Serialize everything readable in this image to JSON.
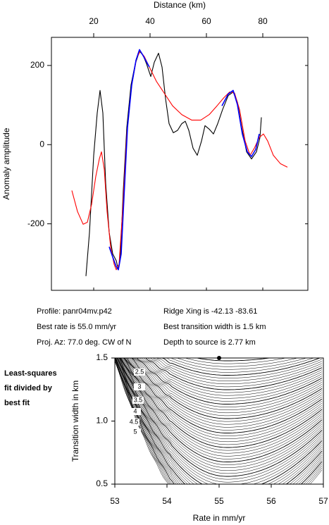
{
  "chart_data": [
    {
      "type": "line",
      "x_label": "Distance (km)",
      "y_label": "Anomaly amplitude",
      "xlim": [
        5,
        96
      ],
      "ylim": [
        -368,
        271
      ],
      "xticks": [
        20,
        40,
        60,
        80
      ],
      "yticks": [
        -200,
        0,
        200
      ],
      "series": [
        {
          "color": "#000000",
          "x": [
            17.25,
            18.5,
            20,
            21.25,
            22.25,
            23.25,
            24.25,
            25.5,
            26.75,
            28,
            28.75,
            29.5,
            30.5,
            31.75,
            33.25,
            34.75,
            36.25,
            37.5,
            38.75,
            40.25,
            41.5,
            43,
            44.25,
            45.5,
            46.75,
            48.25,
            49.75,
            51.25,
            52.5,
            53.75,
            55.25,
            56.75,
            58.25,
            59.5,
            61,
            62.5,
            64,
            65.75,
            67.75,
            69.5,
            71,
            72.5,
            74.25,
            76,
            77.75,
            79,
            79.5
          ],
          "values": [
            -332,
            -222,
            -27,
            80,
            137,
            80,
            -98,
            -222,
            -276,
            -293,
            -316,
            -276,
            -116,
            44,
            151,
            204,
            236,
            226,
            204,
            172,
            208,
            231,
            196,
            116,
            53,
            30,
            36,
            53,
            59,
            36,
            -9,
            -27,
            9,
            48,
            39,
            27,
            53,
            89,
            124,
            133,
            107,
            44,
            -18,
            -36,
            -18,
            18,
            69
          ]
        },
        {
          "color": "#ff0000",
          "x": [
            12.25,
            14.25,
            16.25,
            17.75,
            19.25,
            20.75,
            22,
            22.75,
            23.75,
            24.75,
            26,
            27.25,
            28,
            29,
            30.25,
            31.75,
            33.5,
            35.25,
            36.5,
            38,
            39.75,
            42.25,
            44.75,
            48,
            51.25,
            54.75,
            58,
            61,
            63.75,
            66.25,
            68.25,
            70,
            71.75,
            73.75,
            75.5,
            77,
            78.75,
            80.25,
            81.75,
            83.75,
            86.25,
            88.75
          ],
          "values": [
            -116,
            -169,
            -201,
            -196,
            -151,
            -80,
            -36,
            -18,
            -62,
            -169,
            -258,
            -302,
            -316,
            -302,
            -169,
            27,
            151,
            219,
            236,
            222,
            196,
            160,
            133,
            98,
            76,
            62,
            62,
            76,
            98,
            119,
            133,
            130,
            89,
            9,
            -27,
            -9,
            18,
            27,
            9,
            -27,
            -48,
            -57
          ]
        },
        {
          "color": "#0000ff",
          "x": [
            25.5,
            26.75,
            28,
            28.75,
            29.75,
            30.75,
            32,
            33.5,
            35,
            36.25,
            37.75,
            39.75,
            52,
            65.5,
            67.75,
            69.5,
            71,
            72.75,
            74.5,
            76,
            77.5,
            78.75
          ],
          "values": [
            -258,
            -284,
            -308,
            -316,
            -276,
            -133,
            44,
            151,
            213,
            240,
            222,
            196,
            null,
            98,
            128,
            137,
            101,
            27,
            -18,
            -30,
            -12,
            27
          ]
        }
      ]
    },
    {
      "type": "contour",
      "x_label": "Rate in mm/yr",
      "y_label": "Transition width in km",
      "xlim": [
        53,
        57
      ],
      "ylim": [
        0.5,
        1.5
      ],
      "xticks": [
        53,
        54,
        55,
        56,
        57
      ],
      "yticks": [
        0.5,
        {
          "value": 1,
          "label": "1.0"
        },
        1.5
      ],
      "contour_labels": [
        "2.5",
        "3",
        "3.5",
        "4",
        "4.5",
        "5"
      ],
      "best_point": {
        "x": 55,
        "y": 1.5
      }
    }
  ],
  "info": {
    "left": [
      "Profile: panr04mv.p42",
      "Best rate is 55.0 mm/yr",
      "Proj. Az: 77.0 deg. CW of N"
    ],
    "right": [
      "Ridge Xing is -42.13 -83.61",
      "Best transition width is 1.5 km",
      "Depth to source is   2.77 km"
    ]
  },
  "side_note": [
    "Least-squares",
    "fit divided by",
    "best fit"
  ]
}
